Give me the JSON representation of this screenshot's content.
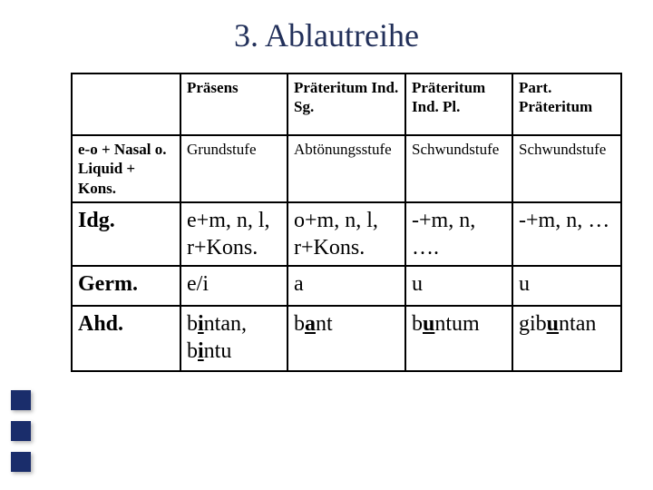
{
  "title": "3. Ablautreihe",
  "table": {
    "background": "#ffffff",
    "border_color": "#000000",
    "title_color": "#22305a",
    "deco_color": "#1a2d6b",
    "cols": [
      120,
      118,
      130,
      118,
      120
    ],
    "header": [
      "",
      "Präsens",
      "Präteritum Ind. Sg.",
      "Präteritum Ind. Pl.",
      "Part. Präteritum"
    ],
    "header_fontsize": 17,
    "rows": [
      {
        "label": "e-o + Nasal o. Liquid + Kons.",
        "cells": [
          "Grundstufe",
          "Abtönungsstufe",
          "Schwundstufe",
          "Schwundstufe"
        ],
        "fontsize": 17
      },
      {
        "label": "Idg.",
        "cells": [
          "e+m, n, l, r+Kons.",
          "o+m, n, l, r+Kons.",
          "-+m, n, ….",
          "-+m, n, …"
        ],
        "fontsize": 24
      },
      {
        "label": "Germ.",
        "cells": [
          "e/i",
          "a",
          "u",
          "u"
        ],
        "fontsize": 24
      }
    ],
    "ahd_row": {
      "label": "Ahd.",
      "cells_struct": [
        {
          "parts": [
            {
              "t": "b"
            },
            {
              "t": "i",
              "u": true
            },
            {
              "t": "ntan, b"
            },
            {
              "t": "i",
              "u": true
            },
            {
              "t": "ntu"
            }
          ]
        },
        {
          "parts": [
            {
              "t": "b"
            },
            {
              "t": "a",
              "u": true
            },
            {
              "t": "nt"
            }
          ]
        },
        {
          "parts": [
            {
              "t": "b"
            },
            {
              "t": "u",
              "u": true
            },
            {
              "t": "ntum"
            }
          ]
        },
        {
          "parts": [
            {
              "t": "gib"
            },
            {
              "t": "u",
              "u": true
            },
            {
              "t": "ntan"
            }
          ]
        }
      ],
      "fontsize": 24
    }
  }
}
